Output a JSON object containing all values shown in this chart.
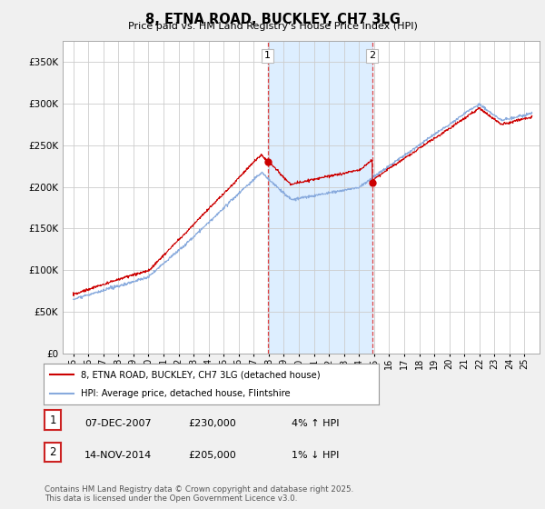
{
  "title": "8, ETNA ROAD, BUCKLEY, CH7 3LG",
  "subtitle": "Price paid vs. HM Land Registry's House Price Index (HPI)",
  "ylabel_ticks": [
    "£0",
    "£50K",
    "£100K",
    "£150K",
    "£200K",
    "£250K",
    "£300K",
    "£350K"
  ],
  "ytick_values": [
    0,
    50000,
    100000,
    150000,
    200000,
    250000,
    300000,
    350000
  ],
  "ylim": [
    0,
    370000
  ],
  "purchase1_date": 2007.92,
  "purchase1_price": 230000,
  "purchase2_date": 2014.87,
  "purchase2_price": 205000,
  "shade_color": "#ddeeff",
  "vline_color": "#dd4444",
  "hpi_line_color": "#88aadd",
  "price_line_color": "#cc0000",
  "legend_label_price": "8, ETNA ROAD, BUCKLEY, CH7 3LG (detached house)",
  "legend_label_hpi": "HPI: Average price, detached house, Flintshire",
  "table_row1_num": "1",
  "table_row1_date": "07-DEC-2007",
  "table_row1_price": "£230,000",
  "table_row1_hpi": "4% ↑ HPI",
  "table_row2_num": "2",
  "table_row2_date": "14-NOV-2014",
  "table_row2_price": "£205,000",
  "table_row2_hpi": "1% ↓ HPI",
  "footer": "Contains HM Land Registry data © Crown copyright and database right 2025.\nThis data is licensed under the Open Government Licence v3.0.",
  "bg_color": "#f0f0f0",
  "plot_bg_color": "#ffffff",
  "box_border_color": "#cc2222"
}
